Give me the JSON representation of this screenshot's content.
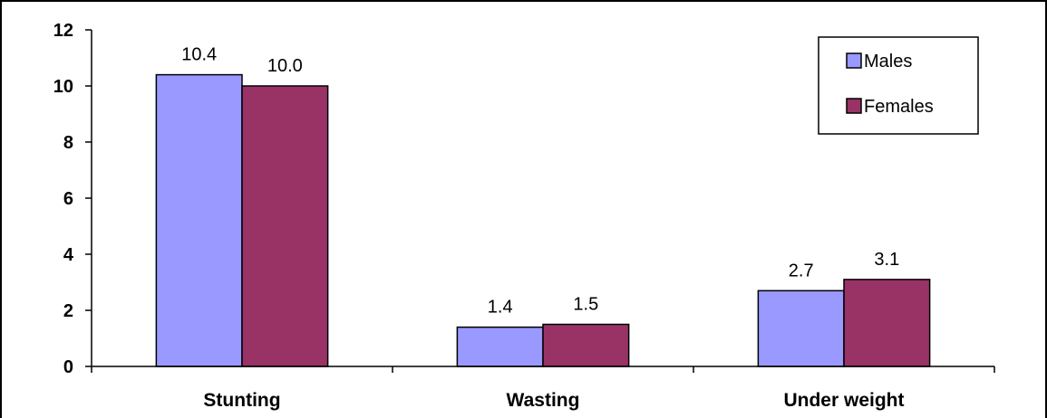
{
  "chart_data": {
    "type": "bar",
    "categories": [
      "Stunting",
      "Wasting",
      "Under weight"
    ],
    "series": [
      {
        "name": "Males",
        "values": [
          10.4,
          1.4,
          2.7
        ],
        "color": "#9999ff"
      },
      {
        "name": "Females",
        "values": [
          10.0,
          1.5,
          3.1
        ],
        "color": "#993366"
      }
    ],
    "data_labels": [
      [
        "10.4",
        "1.4",
        "2.7"
      ],
      [
        "10.0",
        "1.5",
        "3.1"
      ]
    ],
    "y_ticks": [
      "0",
      "2",
      "4",
      "6",
      "8",
      "10",
      "12"
    ],
    "ylim": [
      0,
      12
    ],
    "title": "",
    "xlabel": "",
    "ylabel": "",
    "grid": false,
    "legend_position": "top-right",
    "colors": {
      "bar_stroke": "#000000",
      "axis": "#000000",
      "frame": "#000000",
      "background": "#ffffff"
    }
  }
}
